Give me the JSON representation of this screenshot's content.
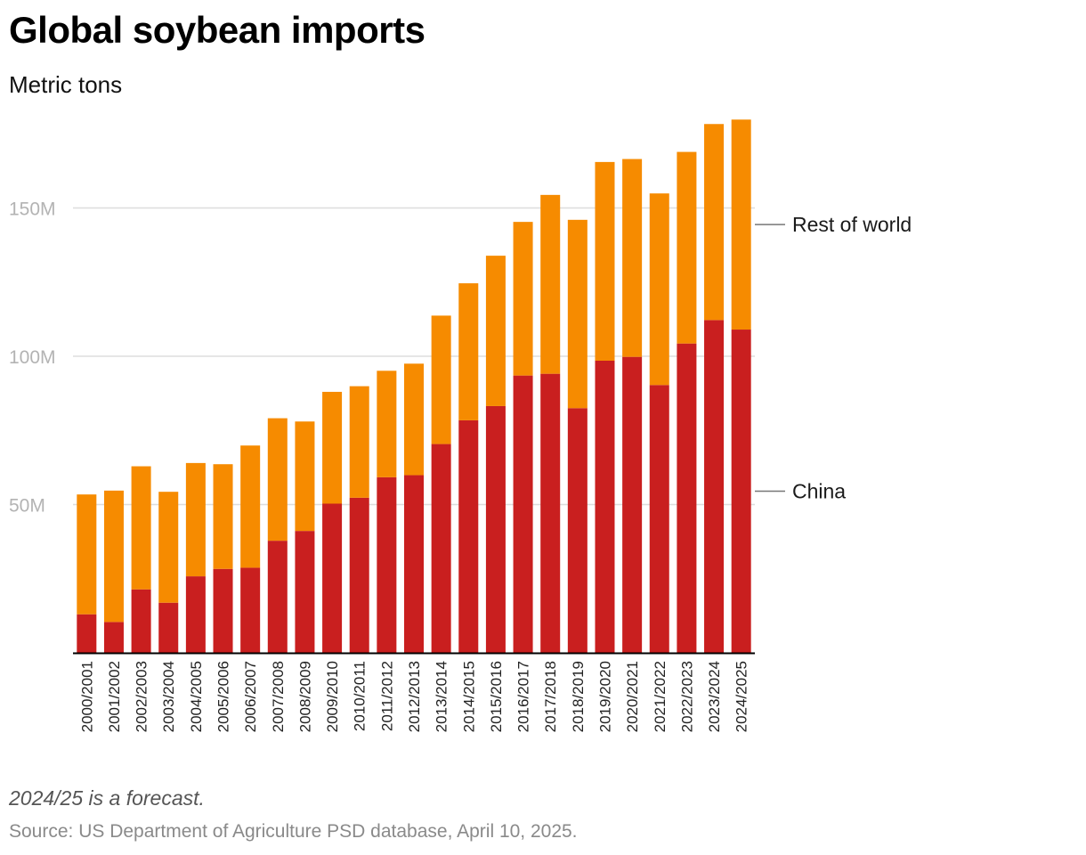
{
  "header": {
    "title": "Global soybean imports",
    "subtitle": "Metric tons"
  },
  "footer": {
    "note": "2024/25 is a forecast.",
    "source": "Source: US Department of Agriculture PSD database, April 10, 2025."
  },
  "colors": {
    "china": "#c91f1f",
    "rest_of_world": "#f68b00",
    "gridline": "#dddddd",
    "axis": "#000000"
  },
  "chart_data": {
    "type": "bar",
    "stacked": true,
    "title": "Global soybean imports",
    "subtitle": "Metric tons",
    "xlabel": "",
    "ylabel": "",
    "ylim": [
      0,
      180000000
    ],
    "yticks": [
      {
        "value": 50000000,
        "label": "50M"
      },
      {
        "value": 100000000,
        "label": "100M"
      },
      {
        "value": 150000000,
        "label": "150M"
      }
    ],
    "grid": true,
    "categories": [
      "2000/2001",
      "2001/2002",
      "2002/2003",
      "2003/2004",
      "2004/2005",
      "2005/2006",
      "2006/2007",
      "2007/2008",
      "2008/2009",
      "2009/2010",
      "2010/2011",
      "2011/2012",
      "2012/2013",
      "2013/2014",
      "2014/2015",
      "2015/2016",
      "2016/2017",
      "2017/2018",
      "2018/2019",
      "2019/2020",
      "2020/2021",
      "2021/2022",
      "2022/2023",
      "2023/2024",
      "2024/2025"
    ],
    "series": [
      {
        "name": "China",
        "color": "#c91f1f",
        "values": [
          13000000,
          10400000,
          21400000,
          16900000,
          25800000,
          28300000,
          28700000,
          37800000,
          41100000,
          50300000,
          52300000,
          59200000,
          59900000,
          70400000,
          78400000,
          83200000,
          93500000,
          94100000,
          82500000,
          98500000,
          99800000,
          90300000,
          104300000,
          112200000,
          109000000
        ]
      },
      {
        "name": "Rest of world",
        "color": "#f68b00",
        "values": [
          40400000,
          44300000,
          41500000,
          37400000,
          38200000,
          35300000,
          41200000,
          41300000,
          36900000,
          37700000,
          37600000,
          35900000,
          37600000,
          43300000,
          46200000,
          50700000,
          51800000,
          60300000,
          63500000,
          67000000,
          66700000,
          64600000,
          64600000,
          66100000,
          70800000
        ]
      }
    ],
    "legend": "right, inline labels at last bar"
  }
}
